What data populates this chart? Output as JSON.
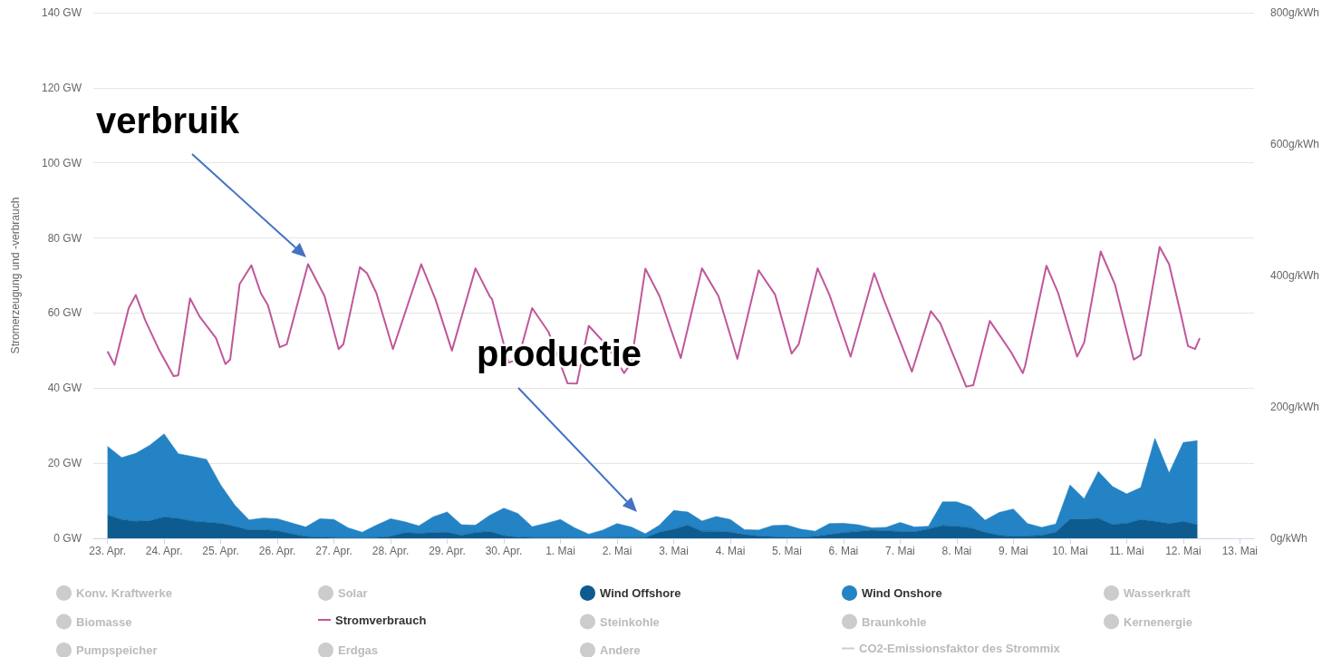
{
  "chart_data": {
    "type": "area",
    "ylabel": "Stromerzeugung und -verbrauch",
    "annotations": [
      "verbruik",
      "productie"
    ],
    "xlim": [
      "--04-22T18:00",
      "--05-13T06:00"
    ],
    "xticks": [
      {
        "value": "--04-23",
        "label": "23. Apr."
      },
      {
        "value": "--04-24",
        "label": "24. Apr."
      },
      {
        "value": "--04-25",
        "label": "25. Apr."
      },
      {
        "value": "--04-26",
        "label": "26. Apr."
      },
      {
        "value": "--04-27",
        "label": "27. Apr."
      },
      {
        "value": "--04-28",
        "label": "28. Apr."
      },
      {
        "value": "--04-29",
        "label": "29. Apr."
      },
      {
        "value": "--04-30",
        "label": "30. Apr."
      },
      {
        "value": "--05-01",
        "label": "1. Mai"
      },
      {
        "value": "--05-02",
        "label": "2. Mai"
      },
      {
        "value": "--05-03",
        "label": "3. Mai"
      },
      {
        "value": "--05-04",
        "label": "4. Mai"
      },
      {
        "value": "--05-05",
        "label": "5. Mai"
      },
      {
        "value": "--05-06",
        "label": "6. Mai"
      },
      {
        "value": "--05-07",
        "label": "7. Mai"
      },
      {
        "value": "--05-08",
        "label": "8. Mai"
      },
      {
        "value": "--05-09",
        "label": "9. Mai"
      },
      {
        "value": "--05-10",
        "label": "10. Mai"
      },
      {
        "value": "--05-11",
        "label": "11. Mai"
      },
      {
        "value": "--05-12",
        "label": "12. Mai"
      },
      {
        "value": "--05-13",
        "label": "13. Mai"
      }
    ],
    "ylim": [
      0,
      140
    ],
    "yticks": [
      {
        "value": 0,
        "label": "0 GW"
      },
      {
        "value": 20,
        "label": "20 GW"
      },
      {
        "value": 40,
        "label": "40 GW"
      },
      {
        "value": 60,
        "label": "60 GW"
      },
      {
        "value": 80,
        "label": "80 GW"
      },
      {
        "value": 100,
        "label": "100 GW"
      },
      {
        "value": 120,
        "label": "120 GW"
      },
      {
        "value": 140,
        "label": "140 GW"
      }
    ],
    "y2lim": [
      0,
      800
    ],
    "y2ticks": [
      {
        "value": 0,
        "label": "0g/kWh"
      },
      {
        "value": 200,
        "label": "200g/kWh"
      },
      {
        "value": 400,
        "label": "400g/kWh"
      },
      {
        "value": 600,
        "label": "600g/kWh"
      },
      {
        "value": 800,
        "label": "800g/kWh"
      }
    ],
    "grid": "y",
    "legend": "bottom",
    "marker": "none",
    "stacked": true,
    "x": [
      "--04-23T00:00",
      "--04-23T06:00",
      "--04-23T12:00",
      "--04-23T18:00",
      "--04-24T00:00",
      "--04-24T06:00",
      "--04-24T12:00",
      "--04-24T18:00",
      "--04-25T00:00",
      "--04-25T06:00",
      "--04-25T12:00",
      "--04-25T18:00",
      "--04-26T00:00",
      "--04-26T06:00",
      "--04-26T12:00",
      "--04-26T18:00",
      "--04-27T00:00",
      "--04-27T06:00",
      "--04-27T12:00",
      "--04-27T18:00",
      "--04-28T00:00",
      "--04-28T06:00",
      "--04-28T12:00",
      "--04-28T18:00",
      "--04-29T00:00",
      "--04-29T06:00",
      "--04-29T12:00",
      "--04-29T18:00",
      "--04-30T00:00",
      "--04-30T06:00",
      "--04-30T12:00",
      "--04-30T18:00",
      "--05-01T00:00",
      "--05-01T06:00",
      "--05-01T12:00",
      "--05-01T18:00",
      "--05-02T00:00",
      "--05-02T06:00",
      "--05-02T12:00",
      "--05-02T18:00",
      "--05-03T00:00",
      "--05-03T06:00",
      "--05-03T12:00",
      "--05-03T18:00",
      "--05-04T00:00",
      "--05-04T06:00",
      "--05-04T12:00",
      "--05-04T18:00",
      "--05-05T00:00",
      "--05-05T06:00",
      "--05-05T12:00",
      "--05-05T18:00",
      "--05-06T00:00",
      "--05-06T06:00",
      "--05-06T12:00",
      "--05-06T18:00",
      "--05-07T00:00",
      "--05-07T06:00",
      "--05-07T12:00",
      "--05-07T18:00",
      "--05-08T00:00",
      "--05-08T06:00",
      "--05-08T12:00",
      "--05-08T18:00",
      "--05-09T00:00",
      "--05-09T06:00",
      "--05-09T12:00",
      "--05-09T18:00",
      "--05-10T00:00",
      "--05-10T06:00",
      "--05-10T12:00",
      "--05-10T18:00",
      "--05-11T00:00",
      "--05-11T06:00",
      "--05-11T12:00",
      "--05-11T18:00",
      "--05-12T00:00",
      "--05-12T06:00"
    ],
    "series": [
      {
        "name": "Konv. Kraftwerke",
        "color": "#cccccc",
        "values": [
          null,
          null,
          null,
          null,
          null,
          null,
          null,
          null,
          null,
          null,
          null,
          null,
          null,
          null,
          null,
          null,
          null,
          null,
          null,
          null,
          null,
          null,
          null,
          null,
          null,
          null,
          null,
          null,
          null,
          null,
          null,
          null,
          null,
          null,
          null,
          null,
          null,
          null,
          null,
          null,
          null,
          null,
          null,
          null,
          null,
          null,
          null,
          null,
          null,
          null,
          null,
          null,
          null,
          null,
          null,
          null,
          null,
          null,
          null,
          null,
          null,
          null,
          null,
          null,
          null,
          null,
          null,
          null,
          null,
          null,
          null,
          null,
          null,
          null,
          null,
          null,
          null,
          null
        ]
      },
      {
        "name": "Solar",
        "color": "#cccccc",
        "values": [
          null,
          null,
          null,
          null,
          null,
          null,
          null,
          null,
          null,
          null,
          null,
          null,
          null,
          null,
          null,
          null,
          null,
          null,
          null,
          null,
          null,
          null,
          null,
          null,
          null,
          null,
          null,
          null,
          null,
          null,
          null,
          null,
          null,
          null,
          null,
          null,
          null,
          null,
          null,
          null,
          null,
          null,
          null,
          null,
          null,
          null,
          null,
          null,
          null,
          null,
          null,
          null,
          null,
          null,
          null,
          null,
          null,
          null,
          null,
          null,
          null,
          null,
          null,
          null,
          null,
          null,
          null,
          null,
          null,
          null,
          null,
          null,
          null,
          null,
          null,
          null,
          null,
          null
        ]
      },
      {
        "name": "Wind Offshore",
        "color": "#0e5c8f",
        "values": [
          6.2,
          5.0,
          4.5,
          4.7,
          5.7,
          5.3,
          4.6,
          4.3,
          4.0,
          3.2,
          2.2,
          2.3,
          2.0,
          1.2,
          0.5,
          0.3,
          0.2,
          0.1,
          0.1,
          0.2,
          0.5,
          1.5,
          1.3,
          1.5,
          1.6,
          0.8,
          1.5,
          1.8,
          0.7,
          0.3,
          0.2,
          0.2,
          0.2,
          0.1,
          0.1,
          0.1,
          0.2,
          0.2,
          0.2,
          1.6,
          2.4,
          3.5,
          1.9,
          1.9,
          1.6,
          1.0,
          0.6,
          0.4,
          0.3,
          0.3,
          0.5,
          1.0,
          1.5,
          1.8,
          2.2,
          2.0,
          1.8,
          1.7,
          2.5,
          3.4,
          3.2,
          2.8,
          1.6,
          0.8,
          0.5,
          0.6,
          0.8,
          1.6,
          5.1,
          5.1,
          5.3,
          3.7,
          4.0,
          5.0,
          4.5,
          3.9,
          4.5,
          3.6
        ]
      },
      {
        "name": "Wind Onshore",
        "color": "#2383c4",
        "values": [
          18.3,
          16.5,
          18.1,
          20.1,
          22.1,
          17.2,
          17.2,
          16.7,
          10.2,
          5.6,
          2.7,
          3.1,
          3.2,
          2.9,
          2.5,
          4.9,
          4.8,
          2.7,
          1.5,
          3.3,
          4.7,
          2.9,
          2.0,
          4.2,
          5.4,
          2.8,
          2.0,
          4.3,
          7.3,
          6.3,
          2.9,
          3.8,
          4.8,
          2.7,
          1.0,
          2.1,
          3.7,
          2.8,
          1.0,
          1.9,
          5.0,
          3.5,
          2.7,
          3.9,
          3.4,
          1.3,
          1.6,
          3.0,
          3.2,
          2.1,
          1.4,
          2.9,
          2.5,
          1.8,
          0.6,
          0.9,
          2.4,
          1.3,
          0.7,
          6.3,
          6.5,
          5.6,
          3.2,
          6.1,
          7.3,
          3.3,
          2.1,
          2.2,
          9.1,
          5.4,
          12.5,
          10.1,
          7.8,
          8.5,
          22.1,
          13.5,
          21.0,
          22.4
        ]
      },
      {
        "name": "Wasserkraft",
        "color": "#cccccc",
        "values": [
          null,
          null,
          null,
          null,
          null,
          null,
          null,
          null,
          null,
          null,
          null,
          null,
          null,
          null,
          null,
          null,
          null,
          null,
          null,
          null,
          null,
          null,
          null,
          null,
          null,
          null,
          null,
          null,
          null,
          null,
          null,
          null,
          null,
          null,
          null,
          null,
          null,
          null,
          null,
          null,
          null,
          null,
          null,
          null,
          null,
          null,
          null,
          null,
          null,
          null,
          null,
          null,
          null,
          null,
          null,
          null,
          null,
          null,
          null,
          null,
          null,
          null,
          null,
          null,
          null,
          null,
          null,
          null,
          null,
          null,
          null,
          null,
          null,
          null,
          null,
          null,
          null,
          null
        ]
      },
      {
        "name": "Biomasse",
        "color": "#cccccc",
        "values": [
          null,
          null,
          null,
          null,
          null,
          null,
          null,
          null,
          null,
          null,
          null,
          null,
          null,
          null,
          null,
          null,
          null,
          null,
          null,
          null,
          null,
          null,
          null,
          null,
          null,
          null,
          null,
          null,
          null,
          null,
          null,
          null,
          null,
          null,
          null,
          null,
          null,
          null,
          null,
          null,
          null,
          null,
          null,
          null,
          null,
          null,
          null,
          null,
          null,
          null,
          null,
          null,
          null,
          null,
          null,
          null,
          null,
          null,
          null,
          null,
          null,
          null,
          null,
          null,
          null,
          null,
          null,
          null,
          null,
          null,
          null,
          null,
          null,
          null,
          null,
          null,
          null,
          null
        ]
      },
      {
        "name": "Stromverbrauch",
        "type": "line",
        "color": "#c0579a",
        "x": [
          "--04-23T00:00",
          "--04-23T03:00",
          "--04-23T09:00",
          "--04-23T12:00",
          "--04-23T16:00",
          "--04-23T22:00",
          "--04-24T04:00",
          "--04-24T06:00",
          "--04-24T11:00",
          "--04-24T15:00",
          "--04-24T22:00",
          "--04-25T02:00",
          "--04-25T04:00",
          "--04-25T08:00",
          "--04-25T13:00",
          "--04-25T17:00",
          "--04-25T20:00",
          "--04-26T01:00",
          "--04-26T04:00",
          "--04-26T13:00",
          "--04-26T20:00",
          "--04-27T02:00",
          "--04-27T04:00",
          "--04-27T11:00",
          "--04-27T14:00",
          "--04-27T18:00",
          "--04-28T01:00",
          "--04-28T13:00",
          "--04-28T19:00",
          "--04-29T02:00",
          "--04-29T12:00",
          "--04-29T18:00",
          "--04-29T19:00",
          "--04-30T02:00",
          "--04-30T06:00",
          "--04-30T12:00",
          "--04-30T19:00",
          "--05-01T03:00",
          "--05-01T07:00",
          "--05-01T12:00",
          "--05-01T18:00",
          "--05-01T22:00",
          "--05-02T03:00",
          "--05-02T06:00",
          "--05-02T12:00",
          "--05-02T18:00",
          "--05-03T03:00",
          "--05-03T12:00",
          "--05-03T19:00",
          "--05-04T03:00",
          "--05-04T12:00",
          "--05-04T19:00",
          "--05-05T02:00",
          "--05-05T05:00",
          "--05-05T13:00",
          "--05-05T18:00",
          "--05-06T03:00",
          "--05-06T13:00",
          "--05-06T17:00",
          "--05-07T05:00",
          "--05-07T13:00",
          "--05-07T17:00",
          "--05-08T04:00",
          "--05-08T07:00",
          "--05-08T14:00",
          "--05-08T19:00",
          "--05-08T23:00",
          "--05-09T04:00",
          "--05-09T05:00",
          "--05-09T14:00",
          "--05-09T19:00",
          "--05-10T03:00",
          "--05-10T06:00",
          "--05-10T13:00",
          "--05-10T19:00",
          "--05-11T03:00",
          "--05-11T06:00",
          "--05-11T14:00",
          "--05-11T18:00",
          "--05-11T23:00",
          "--05-12T02:00",
          "--05-12T05:00",
          "--05-12T07:00"
        ],
        "values": [
          49.8,
          46.2,
          61.3,
          64.8,
          58.1,
          50.0,
          43.2,
          43.4,
          63.9,
          59.1,
          53.3,
          46.4,
          47.6,
          67.7,
          72.7,
          65.3,
          62.1,
          50.9,
          51.7,
          73.0,
          64.5,
          50.4,
          51.7,
          72.2,
          70.6,
          65.3,
          50.4,
          73.0,
          63.7,
          50.0,
          71.9,
          64.5,
          63.7,
          46.8,
          47.6,
          61.3,
          54.9,
          41.3,
          41.2,
          56.6,
          52.5,
          49.2,
          44.0,
          46.8,
          71.8,
          64.5,
          48.0,
          71.9,
          64.5,
          47.8,
          71.4,
          64.9,
          49.2,
          51.7,
          71.9,
          64.9,
          48.4,
          70.6,
          63.7,
          44.4,
          60.5,
          57.3,
          40.4,
          40.8,
          57.9,
          53.3,
          49.6,
          44.0,
          46.0,
          72.6,
          65.3,
          48.4,
          52.1,
          76.4,
          67.7,
          47.6,
          48.8,
          77.6,
          73.0,
          59.7,
          51.2,
          50.4,
          53.3
        ]
      },
      {
        "name": "Steinkohle",
        "color": "#cccccc",
        "values": [
          null,
          null,
          null,
          null,
          null,
          null,
          null,
          null,
          null,
          null,
          null,
          null,
          null,
          null,
          null,
          null,
          null,
          null,
          null,
          null,
          null,
          null,
          null,
          null,
          null,
          null,
          null,
          null,
          null,
          null,
          null,
          null,
          null,
          null,
          null,
          null,
          null,
          null,
          null,
          null,
          null,
          null,
          null,
          null,
          null,
          null,
          null,
          null,
          null,
          null,
          null,
          null,
          null,
          null,
          null,
          null,
          null,
          null,
          null,
          null,
          null,
          null,
          null,
          null,
          null,
          null,
          null,
          null,
          null,
          null,
          null,
          null,
          null,
          null,
          null,
          null,
          null,
          null
        ]
      },
      {
        "name": "Braunkohle",
        "color": "#cccccc",
        "values": [
          null,
          null,
          null,
          null,
          null,
          null,
          null,
          null,
          null,
          null,
          null,
          null,
          null,
          null,
          null,
          null,
          null,
          null,
          null,
          null,
          null,
          null,
          null,
          null,
          null,
          null,
          null,
          null,
          null,
          null,
          null,
          null,
          null,
          null,
          null,
          null,
          null,
          null,
          null,
          null,
          null,
          null,
          null,
          null,
          null,
          null,
          null,
          null,
          null,
          null,
          null,
          null,
          null,
          null,
          null,
          null,
          null,
          null,
          null,
          null,
          null,
          null,
          null,
          null,
          null,
          null,
          null,
          null,
          null,
          null,
          null,
          null,
          null,
          null,
          null,
          null,
          null,
          null
        ]
      },
      {
        "name": "Kernenergie",
        "color": "#cccccc",
        "values": [
          null,
          null,
          null,
          null,
          null,
          null,
          null,
          null,
          null,
          null,
          null,
          null,
          null,
          null,
          null,
          null,
          null,
          null,
          null,
          null,
          null,
          null,
          null,
          null,
          null,
          null,
          null,
          null,
          null,
          null,
          null,
          null,
          null,
          null,
          null,
          null,
          null,
          null,
          null,
          null,
          null,
          null,
          null,
          null,
          null,
          null,
          null,
          null,
          null,
          null,
          null,
          null,
          null,
          null,
          null,
          null,
          null,
          null,
          null,
          null,
          null,
          null,
          null,
          null,
          null,
          null,
          null,
          null,
          null,
          null,
          null,
          null,
          null,
          null,
          null,
          null,
          null,
          null
        ]
      },
      {
        "name": "Pumpspeicher",
        "color": "#cccccc",
        "values": [
          null,
          null,
          null,
          null,
          null,
          null,
          null,
          null,
          null,
          null,
          null,
          null,
          null,
          null,
          null,
          null,
          null,
          null,
          null,
          null,
          null,
          null,
          null,
          null,
          null,
          null,
          null,
          null,
          null,
          null,
          null,
          null,
          null,
          null,
          null,
          null,
          null,
          null,
          null,
          null,
          null,
          null,
          null,
          null,
          null,
          null,
          null,
          null,
          null,
          null,
          null,
          null,
          null,
          null,
          null,
          null,
          null,
          null,
          null,
          null,
          null,
          null,
          null,
          null,
          null,
          null,
          null,
          null,
          null,
          null,
          null,
          null,
          null,
          null,
          null,
          null,
          null,
          null
        ]
      },
      {
        "name": "Erdgas",
        "color": "#cccccc",
        "values": [
          null,
          null,
          null,
          null,
          null,
          null,
          null,
          null,
          null,
          null,
          null,
          null,
          null,
          null,
          null,
          null,
          null,
          null,
          null,
          null,
          null,
          null,
          null,
          null,
          null,
          null,
          null,
          null,
          null,
          null,
          null,
          null,
          null,
          null,
          null,
          null,
          null,
          null,
          null,
          null,
          null,
          null,
          null,
          null,
          null,
          null,
          null,
          null,
          null,
          null,
          null,
          null,
          null,
          null,
          null,
          null,
          null,
          null,
          null,
          null,
          null,
          null,
          null,
          null,
          null,
          null,
          null,
          null,
          null,
          null,
          null,
          null,
          null,
          null,
          null,
          null,
          null,
          null
        ]
      },
      {
        "name": "Andere",
        "color": "#cccccc",
        "values": [
          null,
          null,
          null,
          null,
          null,
          null,
          null,
          null,
          null,
          null,
          null,
          null,
          null,
          null,
          null,
          null,
          null,
          null,
          null,
          null,
          null,
          null,
          null,
          null,
          null,
          null,
          null,
          null,
          null,
          null,
          null,
          null,
          null,
          null,
          null,
          null,
          null,
          null,
          null,
          null,
          null,
          null,
          null,
          null,
          null,
          null,
          null,
          null,
          null,
          null,
          null,
          null,
          null,
          null,
          null,
          null,
          null,
          null,
          null,
          null,
          null,
          null,
          null,
          null,
          null,
          null,
          null,
          null,
          null,
          null,
          null,
          null,
          null,
          null,
          null,
          null,
          null,
          null
        ]
      },
      {
        "name": "CO2-Emissionsfaktor des Strommix",
        "type": "line",
        "color": "#cccccc",
        "values": [
          null,
          null,
          null,
          null,
          null,
          null,
          null,
          null,
          null,
          null,
          null,
          null,
          null,
          null,
          null,
          null,
          null,
          null,
          null,
          null,
          null,
          null,
          null,
          null,
          null,
          null,
          null,
          null,
          null,
          null,
          null,
          null,
          null,
          null,
          null,
          null,
          null,
          null,
          null,
          null,
          null,
          null,
          null,
          null,
          null,
          null,
          null,
          null,
          null,
          null,
          null,
          null,
          null,
          null,
          null,
          null,
          null,
          null,
          null,
          null,
          null,
          null,
          null,
          null,
          null,
          null,
          null,
          null,
          null,
          null,
          null,
          null,
          null,
          null,
          null,
          null,
          null,
          null
        ]
      }
    ]
  }
}
